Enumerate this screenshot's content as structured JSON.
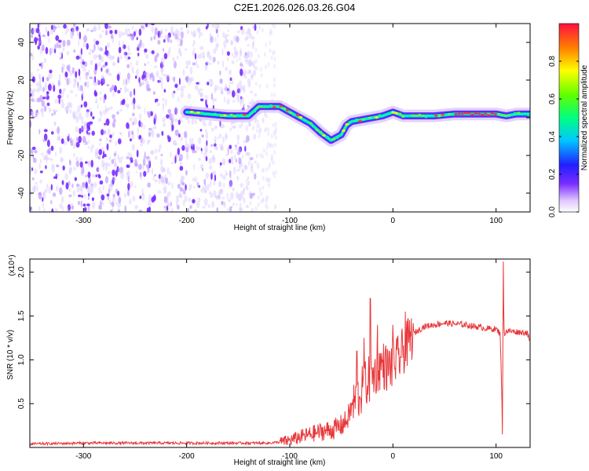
{
  "title": "C2E1.2026.026.03.26.G04",
  "chart_data": [
    {
      "type": "heatmap",
      "name": "spectrogram",
      "xlabel": "Height of straight line (km)",
      "ylabel": "Frequency (Hz)",
      "xlim": [
        -352,
        133
      ],
      "ylim": [
        -50,
        50
      ],
      "xticks": [
        -300,
        -200,
        -100,
        0,
        100
      ],
      "xtick_labels": [
        "-300",
        "-200",
        "-100",
        "0",
        "100"
      ],
      "yticks": [
        -40,
        -20,
        0,
        20,
        40
      ],
      "ytick_labels": [
        "-40",
        "-20",
        "0",
        "20",
        "40"
      ],
      "noise_region_xlim": [
        -352,
        -133
      ],
      "signal_track": {
        "x": [
          -200,
          -180,
          -160,
          -140,
          -130,
          -120,
          -110,
          -100,
          -90,
          -80,
          -70,
          -60,
          -50,
          -45,
          -40,
          -30,
          -20,
          -10,
          0,
          10,
          20,
          40,
          60,
          80,
          100,
          110,
          120,
          133
        ],
        "y": [
          3,
          2,
          1,
          1,
          6,
          6,
          6,
          3,
          0,
          -3,
          -8,
          -12,
          -9,
          -4,
          -2,
          -1,
          0,
          1,
          3,
          1,
          1,
          1,
          2,
          2,
          2,
          1,
          2,
          2
        ]
      },
      "colorbar": {
        "label": "Normalized spectral amplitude",
        "range": [
          0,
          1
        ],
        "ticks": [
          0,
          0.2,
          0.4,
          0.6,
          0.8
        ],
        "tick_labels": [
          "0.0",
          "0.2",
          "0.4",
          "0.6",
          "0.8"
        ]
      }
    },
    {
      "type": "line",
      "name": "snr",
      "xlabel": "Height of straight line (km)",
      "ylabel": "SNR (10 * v/v)",
      "y_multiplier_label": "(x10⁴)",
      "xlim": [
        -352,
        133
      ],
      "ylim": [
        0,
        2.15
      ],
      "xticks": [
        -300,
        -200,
        -100,
        0,
        100
      ],
      "xtick_labels": [
        "-300",
        "-200",
        "-100",
        "0",
        "100"
      ],
      "yticks": [
        0.5,
        1.0,
        1.5,
        2.0
      ],
      "ytick_labels": [
        "0.5",
        "1.0",
        "1.5",
        "2.0"
      ],
      "series": [
        {
          "name": "SNR",
          "color": "#e8373a",
          "x": [
            -352,
            -300,
            -250,
            -200,
            -150,
            -120,
            -110,
            -100,
            -90,
            -80,
            -70,
            -60,
            -55,
            -50,
            -45,
            -40,
            -35,
            -30,
            -25,
            -20,
            -15,
            -10,
            -5,
            0,
            5,
            10,
            15,
            20,
            30,
            40,
            50,
            60,
            70,
            80,
            90,
            100,
            104,
            105,
            106,
            107,
            108,
            110,
            120,
            130,
            133
          ],
          "y": [
            0.04,
            0.05,
            0.05,
            0.05,
            0.05,
            0.05,
            0.06,
            0.08,
            0.12,
            0.15,
            0.18,
            0.2,
            0.22,
            0.25,
            0.3,
            0.45,
            0.55,
            0.65,
            0.75,
            0.8,
            0.9,
            0.95,
            0.9,
            0.95,
            1.0,
            1.1,
            1.2,
            1.3,
            1.38,
            1.4,
            1.42,
            1.41,
            1.4,
            1.38,
            1.36,
            1.35,
            1.3,
            0.9,
            0.3,
            1.8,
            1.3,
            1.33,
            1.32,
            1.31,
            1.2
          ],
          "spikes": [
            {
              "x": -35,
              "y": 1.1
            },
            {
              "x": -28,
              "y": 1.25
            },
            {
              "x": -22,
              "y": 1.7
            },
            {
              "x": -15,
              "y": 1.4
            },
            {
              "x": 0,
              "y": 1.4
            },
            {
              "x": 12,
              "y": 1.55
            },
            {
              "x": 106,
              "y": 0.15
            },
            {
              "x": 107,
              "y": 2.12
            }
          ]
        }
      ]
    }
  ]
}
